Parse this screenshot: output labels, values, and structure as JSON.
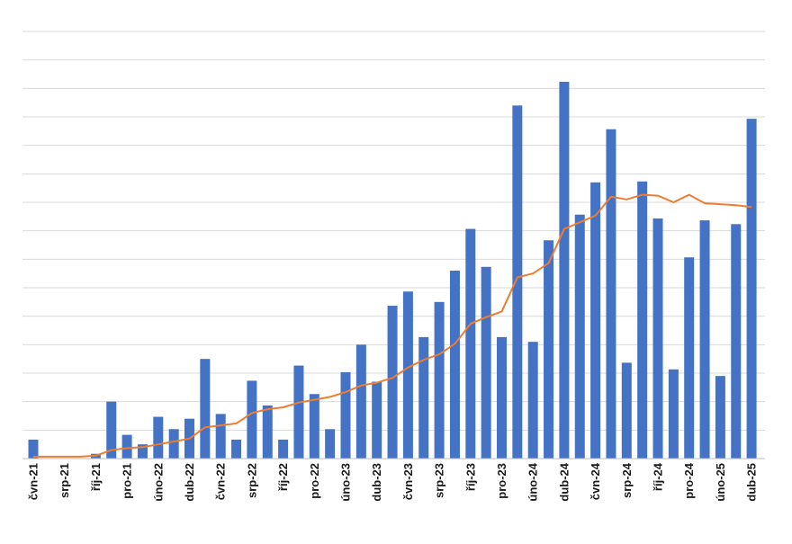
{
  "chart_data": {
    "type": "bar",
    "categories": [
      "čvn-21",
      "čvc-21",
      "srp-21",
      "zář-21",
      "říj-21",
      "lis-21",
      "pro-21",
      "led-22",
      "úno-22",
      "bře-22",
      "dub-22",
      "kvě-22",
      "čvn-22",
      "čvc-22",
      "srp-22",
      "zář-22",
      "říj-22",
      "lis-22",
      "pro-22",
      "led-23",
      "úno-23",
      "bře-23",
      "dub-23",
      "kvě-23",
      "čvn-23",
      "čvc-23",
      "srp-23",
      "zář-23",
      "říj-23",
      "lis-23",
      "pro-23",
      "led-24",
      "úno-24",
      "bře-24",
      "dub-24",
      "kvě-24",
      "čvn-24",
      "čvc-24",
      "srp-24",
      "zář-24",
      "říj-24",
      "lis-24",
      "pro-24",
      "led-25",
      "úno-25",
      "bře-25",
      "dub-25"
    ],
    "visible_tick_labels": [
      "čvn-21",
      "srp-21",
      "říj-21",
      "pro-21",
      "úno-22",
      "dub-22",
      "čvn-22",
      "srp-22",
      "říj-22",
      "pro-22",
      "úno-23",
      "dub-23",
      "čvn-23",
      "srp-23",
      "říj-23",
      "pro-23",
      "úno-24",
      "dub-24",
      "čvn-24",
      "srp-24",
      "říj-24",
      "pro-24",
      "úno-25",
      "dub-25"
    ],
    "series": [
      {
        "type": "bar",
        "color": "#4472c4",
        "values": [
          20,
          0,
          0,
          0,
          5,
          60,
          25,
          15,
          44,
          31,
          42,
          105,
          47,
          20,
          82,
          56,
          20,
          98,
          68,
          31,
          91,
          120,
          81,
          161,
          176,
          128,
          165,
          198,
          242,
          202,
          128,
          372,
          123,
          230,
          397,
          257,
          291,
          347,
          101,
          292,
          253,
          94,
          212,
          251,
          87,
          247,
          358
        ]
      },
      {
        "type": "line",
        "color": "#ed7d31",
        "values": [
          2,
          2,
          2,
          2,
          3,
          9,
          11,
          12,
          15,
          18,
          21,
          33,
          35,
          37,
          48,
          52,
          54,
          59,
          62,
          65,
          70,
          77,
          80,
          85,
          96,
          104,
          110,
          121,
          142,
          149,
          155,
          191,
          195,
          206,
          242,
          249,
          256,
          276,
          273,
          278,
          277,
          270,
          278,
          269,
          268,
          267,
          265
        ]
      }
    ],
    "ylim": [
      0,
      450
    ],
    "grid": true,
    "legend": "none"
  }
}
